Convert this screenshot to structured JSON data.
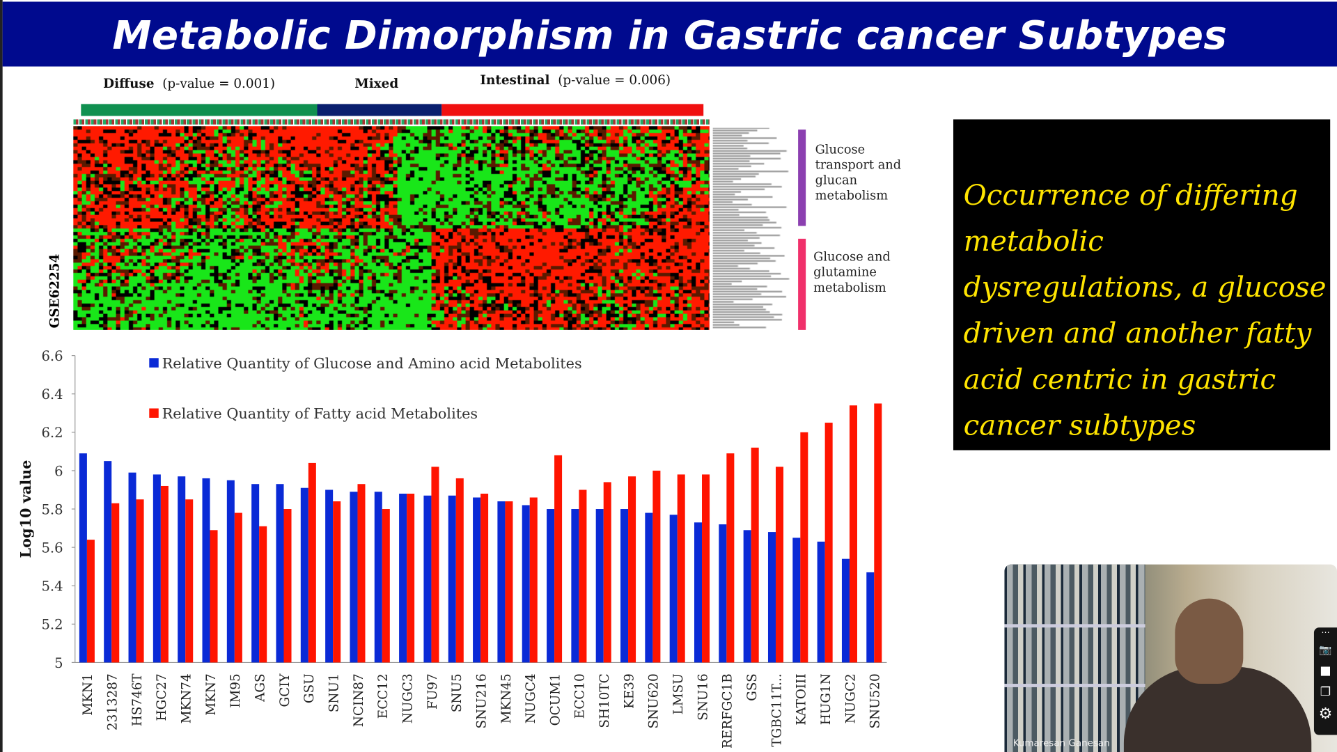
{
  "title": "Metabolic Dimorphism in Gastric cancer Subtypes",
  "heatmap": {
    "groups": [
      {
        "name": "Diffuse",
        "pvalue": "(p-value = 0.001)",
        "color": "#109050"
      },
      {
        "name": "Mixed",
        "pvalue": "",
        "color": "#0a1f6e"
      },
      {
        "name": "Intestinal",
        "pvalue": "(p-value = 0.006)",
        "color": "#f01010"
      }
    ],
    "dataset_label": "GSE62254",
    "clusters": [
      {
        "label": "Glucose transport and glucan metabolism",
        "color": "#8b3fb0"
      },
      {
        "label": "Glucose and glutamine metabolism",
        "color": "#f0306a"
      }
    ],
    "colors": {
      "high": "#ff1a00",
      "low": "#19e619",
      "mid": "#000000"
    }
  },
  "chart_data": {
    "type": "bar",
    "title": "",
    "xlabel": "",
    "ylabel": "Log10 value",
    "ylim": [
      5,
      6.6
    ],
    "yticks": [
      "5",
      "5.2",
      "5.4",
      "5.6",
      "5.8",
      "6",
      "6.2",
      "6.4",
      "6.6"
    ],
    "grid": false,
    "legend": "top-left",
    "categories": [
      "MKN1",
      "2313287",
      "HS746T",
      "HGC27",
      "MKN74",
      "MKN7",
      "IM95",
      "AGS",
      "GCIY",
      "GSU",
      "SNU1",
      "NCIN87",
      "ECC12",
      "NUGC3",
      "FU97",
      "SNU5",
      "SNU216",
      "MKN45",
      "NUGC4",
      "OCUM1",
      "ECC10",
      "SH10TC",
      "KE39",
      "SNU620",
      "LMSU",
      "SNU16",
      "RERFGC1B",
      "GSS",
      "TGBC11T...",
      "KATOIII",
      "HUG1N",
      "NUGC2",
      "SNU520"
    ],
    "series": [
      {
        "name": "Relative Quantity of Glucose and Amino acid Metabolites",
        "color": "#0a2ad6",
        "values": [
          6.09,
          6.05,
          5.99,
          5.98,
          5.97,
          5.96,
          5.95,
          5.93,
          5.93,
          5.91,
          5.9,
          5.89,
          5.89,
          5.88,
          5.87,
          5.87,
          5.86,
          5.84,
          5.82,
          5.8,
          5.8,
          5.8,
          5.8,
          5.78,
          5.77,
          5.73,
          5.72,
          5.69,
          5.68,
          5.65,
          5.63,
          5.54,
          5.47
        ]
      },
      {
        "name": "Relative Quantity of Fatty acid Metabolites",
        "color": "#ff1400",
        "values": [
          5.64,
          5.83,
          5.85,
          5.92,
          5.85,
          5.69,
          5.78,
          5.71,
          5.8,
          6.04,
          5.84,
          5.93,
          5.8,
          5.88,
          6.02,
          5.96,
          5.88,
          5.84,
          5.86,
          6.08,
          5.9,
          5.94,
          5.97,
          6.0,
          5.98,
          5.98,
          6.09,
          6.12,
          6.02,
          6.2,
          6.25,
          6.34,
          6.35
        ]
      }
    ]
  },
  "message": "Occurrence of differing metabolic dysregulations, a glucose driven and another fatty acid centric in gastric cancer subtypes",
  "video": {
    "participant_name": "Kumaresan Ganesan"
  },
  "toolbar": {
    "more": "⋯",
    "camera": "📷",
    "video": "■",
    "share": "❐",
    "settings": "⚙"
  }
}
